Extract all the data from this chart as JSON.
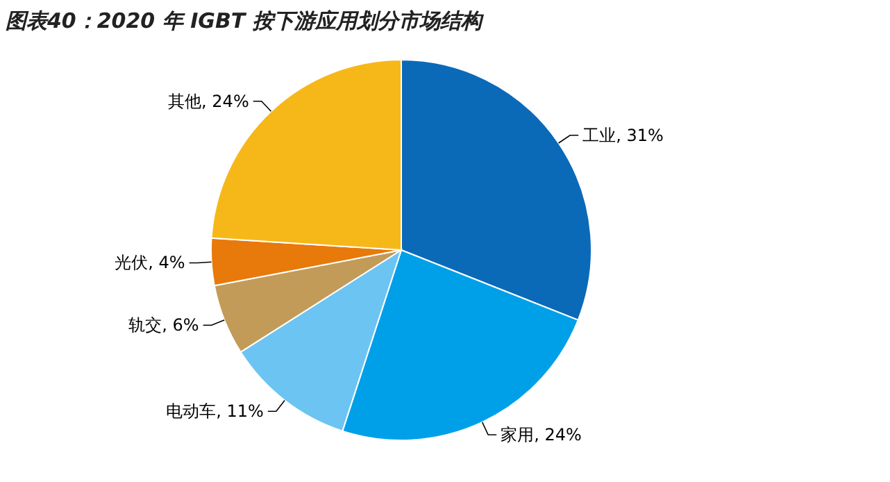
{
  "chart_data": {
    "type": "pie",
    "title": "图表40：2020 年 IGBT 按下游应用划分市场结构",
    "categories": [
      "工业",
      "家用",
      "电动车",
      "轨交",
      "光伏",
      "其他"
    ],
    "values": [
      31,
      24,
      11,
      6,
      4,
      24
    ],
    "value_labels": [
      "31%",
      "24%",
      "11%",
      "6%",
      "4%",
      "24%"
    ],
    "colors": [
      "#0a6ab8",
      "#00a0e9",
      "#6cc4f2",
      "#c39b58",
      "#e8790b",
      "#f6b819"
    ]
  }
}
